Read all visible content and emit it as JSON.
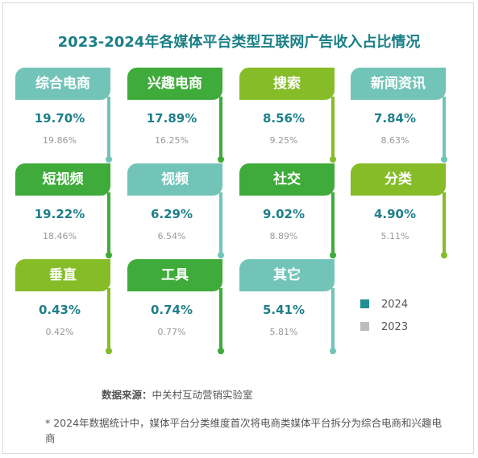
{
  "title": "2023-2024年各媒体平台类型互联网广告收入占比情况",
  "colors": {
    "teal": "#72c4b9",
    "green": "#3fab3a",
    "lime": "#85bc28",
    "value_2024": "#1f7f89",
    "value_2023": "#999999"
  },
  "legend": [
    {
      "label": "2024",
      "color": "#1f8f94"
    },
    {
      "label": "2023",
      "color": "#bdbdbd"
    }
  ],
  "chart_data": {
    "type": "table",
    "title": "2023-2024年各媒体平台类型互联网广告收入占比情况",
    "unit": "%",
    "categories": [
      "综合电商",
      "兴趣电商",
      "搜索",
      "新闻资讯",
      "短视频",
      "视频",
      "社交",
      "分类",
      "垂直",
      "工具",
      "其它"
    ],
    "series": [
      {
        "name": "2024",
        "values": [
          "19.70%",
          "17.89%",
          "8.56%",
          "7.84%",
          "19.22%",
          "6.29%",
          "9.02%",
          "4.90%",
          "0.43%",
          "0.74%",
          "5.41%"
        ]
      },
      {
        "name": "2023",
        "values": [
          "19.86%",
          "16.25%",
          "9.25%",
          "8.63%",
          "18.46%",
          "6.54%",
          "8.89%",
          "5.11%",
          "0.42%",
          "0.77%",
          "5.81%"
        ]
      }
    ]
  },
  "cards": [
    {
      "label": "综合电商",
      "v2024": "19.70%",
      "v2023": "19.86%",
      "color": "teal"
    },
    {
      "label": "兴趣电商",
      "v2024": "17.89%",
      "v2023": "16.25%",
      "color": "green"
    },
    {
      "label": "搜索",
      "v2024": "8.56%",
      "v2023": "9.25%",
      "color": "lime"
    },
    {
      "label": "新闻资讯",
      "v2024": "7.84%",
      "v2023": "8.63%",
      "color": "teal"
    },
    {
      "label": "短视频",
      "v2024": "19.22%",
      "v2023": "18.46%",
      "color": "green"
    },
    {
      "label": "视频",
      "v2024": "6.29%",
      "v2023": "6.54%",
      "color": "teal"
    },
    {
      "label": "社交",
      "v2024": "9.02%",
      "v2023": "8.89%",
      "color": "green"
    },
    {
      "label": "分类",
      "v2024": "4.90%",
      "v2023": "5.11%",
      "color": "lime"
    },
    {
      "label": "垂直",
      "v2024": "0.43%",
      "v2023": "0.42%",
      "color": "lime"
    },
    {
      "label": "工具",
      "v2024": "0.74%",
      "v2023": "0.77%",
      "color": "green"
    },
    {
      "label": "其它",
      "v2024": "5.41%",
      "v2023": "5.81%",
      "color": "teal"
    }
  ],
  "source": {
    "label": "数据来源：",
    "value": "中关村互动营销实验室"
  },
  "note": "* 2024年数据统计中，媒体平台分类维度首次将电商类媒体平台拆分为综合电商和兴趣电商"
}
